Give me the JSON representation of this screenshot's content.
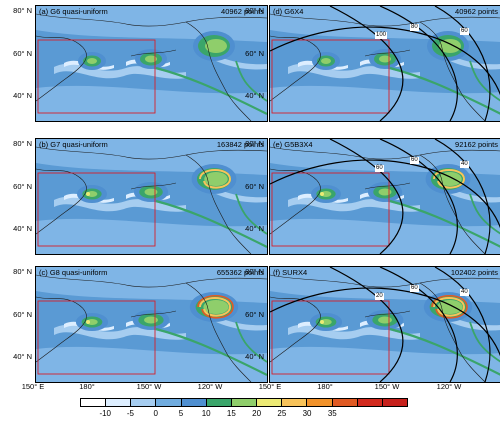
{
  "panels": [
    {
      "title": "(a) G6 quasi-uniform",
      "points": "40962 points",
      "contours": []
    },
    {
      "title": "(d) G6X4",
      "points": "40962 points",
      "contours": [
        "100",
        "80",
        "60"
      ]
    },
    {
      "title": "(b) G7 quasi-uniform",
      "points": "163842 points",
      "contours": []
    },
    {
      "title": "(e) G5B3X4",
      "points": "92162 points",
      "contours": [
        "60",
        "60",
        "40"
      ]
    },
    {
      "title": "(c) G8 quasi-uniform",
      "points": "655362 points",
      "contours": []
    },
    {
      "title": "(f) SURX4",
      "points": "102402 points",
      "contours": [
        "20",
        "60",
        "40"
      ]
    }
  ],
  "axes": {
    "y_labels": [
      "80° N",
      "60° N",
      "40° N"
    ],
    "x_labels": [
      "150° E",
      "180°",
      "150° W",
      "120° W"
    ]
  },
  "colorbar": {
    "labels": [
      "-10",
      "-5",
      "0",
      "5",
      "10",
      "15",
      "20",
      "25",
      "30",
      "35"
    ],
    "colors": [
      "#ffffff",
      "#ddeeff",
      "#a6cdf0",
      "#70acdf",
      "#4f8fd0",
      "#3aa56a",
      "#8fce6b",
      "#ecea74",
      "#f8c35a",
      "#f1922a",
      "#e05a23",
      "#d22a1e",
      "#c7211c"
    ]
  }
}
